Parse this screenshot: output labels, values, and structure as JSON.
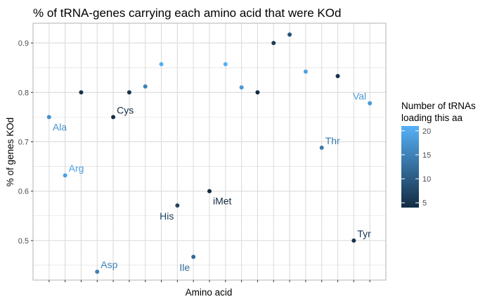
{
  "chart_data": {
    "type": "scatter",
    "title": "% of tRNA-genes carrying each amino acid that were KOd",
    "xlabel": "Amino acid",
    "ylabel": "% of genes KOd",
    "ylim": [
      0.42,
      0.94
    ],
    "y_ticks": [
      0.5,
      0.6,
      0.7,
      0.8,
      0.9
    ],
    "y_tick_labels": [
      "0.5",
      "0.6",
      "0.7",
      "0.8",
      "0.9"
    ],
    "x_count": 21,
    "grid": true,
    "colors": {
      "low": "#132B43",
      "high": "#56B1F7",
      "panel_border": "#b3b3b3",
      "grid": "#dcdcdc"
    },
    "points": [
      {
        "x": 1,
        "y": 0.75,
        "n": 17,
        "label": "Ala",
        "label_pos": "below-right"
      },
      {
        "x": 2,
        "y": 0.632,
        "n": 19,
        "label": "Arg",
        "label_pos": "above-right"
      },
      {
        "x": 3,
        "y": 0.8,
        "n": 5,
        "label": ""
      },
      {
        "x": 4,
        "y": 0.437,
        "n": 15,
        "label": "Asp",
        "label_pos": "above-right"
      },
      {
        "x": 5,
        "y": 0.75,
        "n": 4,
        "label": "Cys",
        "label_pos": "above-right"
      },
      {
        "x": 6,
        "y": 0.8,
        "n": 5,
        "label": ""
      },
      {
        "x": 7,
        "y": 0.812,
        "n": 15,
        "label": ""
      },
      {
        "x": 8,
        "y": 0.857,
        "n": 21,
        "label": ""
      },
      {
        "x": 9,
        "y": 0.571,
        "n": 7,
        "label": "His",
        "label_pos": "below-left"
      },
      {
        "x": 10,
        "y": 0.467,
        "n": 12,
        "label": "Ile",
        "label_pos": "below-left"
      },
      {
        "x": 11,
        "y": 0.6,
        "n": 4,
        "label": "iMet",
        "label_pos": "below-right"
      },
      {
        "x": 12,
        "y": 0.857,
        "n": 21,
        "label": ""
      },
      {
        "x": 13,
        "y": 0.81,
        "n": 18,
        "label": ""
      },
      {
        "x": 14,
        "y": 0.8,
        "n": 4,
        "label": ""
      },
      {
        "x": 15,
        "y": 0.9,
        "n": 6,
        "label": ""
      },
      {
        "x": 16,
        "y": 0.917,
        "n": 9,
        "label": ""
      },
      {
        "x": 17,
        "y": 0.842,
        "n": 19,
        "label": ""
      },
      {
        "x": 18,
        "y": 0.688,
        "n": 14,
        "label": "Thr",
        "label_pos": "above-right"
      },
      {
        "x": 19,
        "y": 0.833,
        "n": 5,
        "label": ""
      },
      {
        "x": 20,
        "y": 0.5,
        "n": 5,
        "label": "Tyr",
        "label_pos": "above-right"
      },
      {
        "x": 21,
        "y": 0.778,
        "n": 18,
        "label": "Val",
        "label_pos": "above-left"
      }
    ],
    "legend": {
      "title_lines": [
        "Number of tRNAs",
        "loading this aa"
      ],
      "range": [
        4,
        21
      ],
      "ticks": [
        5,
        10,
        15,
        20
      ],
      "tick_labels": [
        "5",
        "10",
        "15",
        "20"
      ],
      "placement": "right"
    }
  }
}
